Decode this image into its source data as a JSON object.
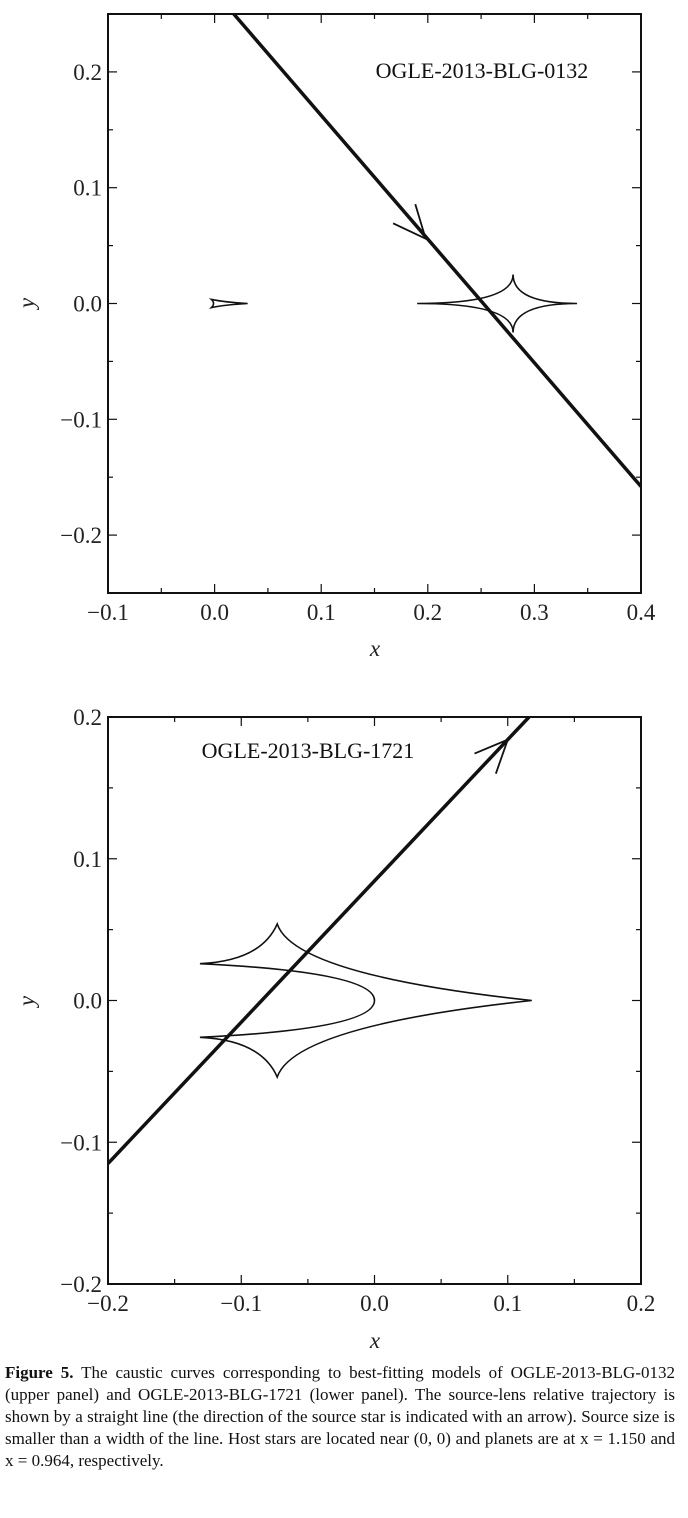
{
  "chart_data": [
    {
      "type": "line",
      "title": "OGLE-2013-BLG-0132",
      "xlabel": "x",
      "ylabel": "y",
      "xlim": [
        -0.1,
        0.4
      ],
      "ylim": [
        -0.25,
        0.25
      ],
      "x_ticks": [
        -0.1,
        0.0,
        0.1,
        0.2,
        0.3,
        0.4
      ],
      "y_ticks": [
        -0.2,
        -0.1,
        0.0,
        0.1,
        0.2
      ],
      "x_tick_labels": [
        "−0.1",
        "0.0",
        "0.1",
        "0.2",
        "0.3",
        "0.4"
      ],
      "y_tick_labels": [
        "−0.2",
        "−0.1",
        "0.0",
        "0.1",
        "0.2"
      ],
      "grid": false,
      "trajectory": {
        "from": [
          0.018,
          0.25
        ],
        "to": [
          0.4,
          -0.158
        ],
        "arrow_at": [
          0.198,
          0.056
        ]
      },
      "caustics": [
        {
          "shape": "astroid",
          "center": [
            0.28,
            0.0
          ],
          "half_width": 0.06,
          "half_height": 0.025,
          "left_width": 0.09
        },
        {
          "shape": "arrowhead",
          "tip": [
            0.031,
            0.0
          ],
          "back": [
            -0.003,
            0.0
          ],
          "half_height": 0.0035
        }
      ]
    },
    {
      "type": "line",
      "title": "OGLE-2013-BLG-1721",
      "xlabel": "x",
      "ylabel": "y",
      "xlim": [
        -0.2,
        0.2
      ],
      "ylim": [
        -0.2,
        0.2
      ],
      "x_ticks": [
        -0.2,
        -0.1,
        0.0,
        0.1,
        0.2
      ],
      "y_ticks": [
        -0.2,
        -0.1,
        0.0,
        0.1,
        0.2
      ],
      "x_tick_labels": [
        "−0.2",
        "−0.1",
        "0.0",
        "0.1",
        "0.2"
      ],
      "y_tick_labels": [
        "−0.2",
        "−0.1",
        "0.0",
        "0.1",
        "0.2"
      ],
      "grid": false,
      "trajectory": {
        "from": [
          -0.2,
          -0.115
        ],
        "to": [
          0.116,
          0.2
        ],
        "arrow_at": [
          0.1,
          0.184
        ]
      },
      "caustics": [
        {
          "shape": "central-caustic",
          "left_cusps": [
            [
              -0.131,
              0.026
            ],
            [
              -0.131,
              -0.026
            ]
          ],
          "top_cusp": [
            -0.073,
            0.054
          ],
          "bottom_cusp": [
            -0.073,
            -0.054
          ],
          "right_cusp": [
            0.118,
            0.0
          ],
          "inner_cusp": [
            0.0,
            0.0
          ]
        }
      ]
    }
  ],
  "caption": {
    "label": "Figure 5.",
    "text": "The caustic curves corresponding to best-fitting models of OGLE-2013-BLG-0132 (upper panel) and OGLE-2013-BLG-1721 (lower panel). The source-lens relative trajectory is shown by a straight line (the direction of the source star is indicated with an arrow). Source size is smaller than a width of the line. Host stars are located near (0, 0) and planets are at x = 1.150 and x = 0.964, respectively."
  }
}
